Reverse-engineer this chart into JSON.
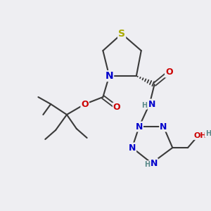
{
  "background_color": "#eeeef2",
  "bond_color": "#3a3a3a",
  "colors": {
    "S": "#aaaa00",
    "N": "#0000cc",
    "O": "#cc0000",
    "C": "#3a3a3a",
    "H": "#5a8a8a"
  },
  "figsize": [
    3.0,
    3.0
  ],
  "dpi": 100
}
